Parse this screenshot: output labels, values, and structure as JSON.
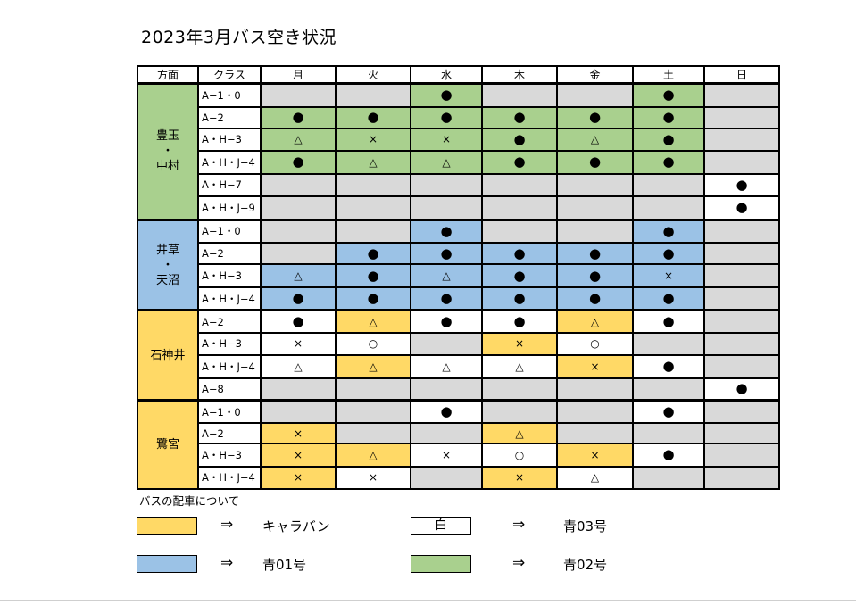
{
  "title": "2023年3月バス空き状況",
  "headers": [
    "方面",
    "クラス",
    "月",
    "火",
    "水",
    "木",
    "金",
    "土",
    "日"
  ],
  "colors": {
    "green": "#a9d08e",
    "blue": "#9bc2e6",
    "yellow": "#ffd966",
    "gray": "#d9d9d9",
    "white": "#ffffff"
  },
  "groups": [
    {
      "direction_lines": [
        "豊玉",
        "・",
        "中村"
      ],
      "color": "green",
      "rows": [
        {
          "cls": "A−1・0",
          "cells": [
            {
              "m": "",
              "c": "gray"
            },
            {
              "m": "",
              "c": "gray"
            },
            {
              "m": "●",
              "c": "green"
            },
            {
              "m": "",
              "c": "gray"
            },
            {
              "m": "",
              "c": "gray"
            },
            {
              "m": "●",
              "c": "green"
            },
            {
              "m": "",
              "c": "gray"
            }
          ]
        },
        {
          "cls": "A−2",
          "cells": [
            {
              "m": "●",
              "c": "green"
            },
            {
              "m": "●",
              "c": "green"
            },
            {
              "m": "●",
              "c": "green"
            },
            {
              "m": "●",
              "c": "green"
            },
            {
              "m": "●",
              "c": "green"
            },
            {
              "m": "●",
              "c": "green"
            },
            {
              "m": "",
              "c": "gray"
            }
          ]
        },
        {
          "cls": "A・H−3",
          "cells": [
            {
              "m": "△",
              "c": "green"
            },
            {
              "m": "×",
              "c": "green"
            },
            {
              "m": "×",
              "c": "green"
            },
            {
              "m": "●",
              "c": "green"
            },
            {
              "m": "△",
              "c": "green"
            },
            {
              "m": "●",
              "c": "green"
            },
            {
              "m": "",
              "c": "gray"
            }
          ]
        },
        {
          "cls": "A・H・J−4",
          "cells": [
            {
              "m": "●",
              "c": "green"
            },
            {
              "m": "△",
              "c": "green"
            },
            {
              "m": "△",
              "c": "green"
            },
            {
              "m": "●",
              "c": "green"
            },
            {
              "m": "●",
              "c": "green"
            },
            {
              "m": "●",
              "c": "green"
            },
            {
              "m": "",
              "c": "gray"
            }
          ]
        },
        {
          "cls": "A・H−7",
          "cells": [
            {
              "m": "",
              "c": "gray"
            },
            {
              "m": "",
              "c": "gray"
            },
            {
              "m": "",
              "c": "gray"
            },
            {
              "m": "",
              "c": "gray"
            },
            {
              "m": "",
              "c": "gray"
            },
            {
              "m": "",
              "c": "gray"
            },
            {
              "m": "●",
              "c": "white"
            }
          ]
        },
        {
          "cls": "A・H・J−9",
          "cells": [
            {
              "m": "",
              "c": "gray"
            },
            {
              "m": "",
              "c": "gray"
            },
            {
              "m": "",
              "c": "gray"
            },
            {
              "m": "",
              "c": "gray"
            },
            {
              "m": "",
              "c": "gray"
            },
            {
              "m": "",
              "c": "gray"
            },
            {
              "m": "●",
              "c": "white"
            }
          ]
        }
      ]
    },
    {
      "direction_lines": [
        "井草",
        "・",
        "天沼"
      ],
      "color": "blue",
      "rows": [
        {
          "cls": "A−1・0",
          "cells": [
            {
              "m": "",
              "c": "gray"
            },
            {
              "m": "",
              "c": "gray"
            },
            {
              "m": "●",
              "c": "blue"
            },
            {
              "m": "",
              "c": "gray"
            },
            {
              "m": "",
              "c": "gray"
            },
            {
              "m": "●",
              "c": "blue"
            },
            {
              "m": "",
              "c": "gray"
            }
          ]
        },
        {
          "cls": "A−2",
          "cells": [
            {
              "m": "",
              "c": "gray"
            },
            {
              "m": "●",
              "c": "blue"
            },
            {
              "m": "●",
              "c": "blue"
            },
            {
              "m": "●",
              "c": "blue"
            },
            {
              "m": "●",
              "c": "blue"
            },
            {
              "m": "●",
              "c": "blue"
            },
            {
              "m": "",
              "c": "gray"
            }
          ]
        },
        {
          "cls": "A・H−3",
          "cells": [
            {
              "m": "△",
              "c": "blue"
            },
            {
              "m": "●",
              "c": "blue"
            },
            {
              "m": "△",
              "c": "blue"
            },
            {
              "m": "●",
              "c": "blue"
            },
            {
              "m": "●",
              "c": "blue"
            },
            {
              "m": "×",
              "c": "blue"
            },
            {
              "m": "",
              "c": "gray"
            }
          ]
        },
        {
          "cls": "A・H・J−4",
          "cells": [
            {
              "m": "●",
              "c": "blue"
            },
            {
              "m": "●",
              "c": "blue"
            },
            {
              "m": "●",
              "c": "blue"
            },
            {
              "m": "●",
              "c": "blue"
            },
            {
              "m": "●",
              "c": "blue"
            },
            {
              "m": "●",
              "c": "blue"
            },
            {
              "m": "",
              "c": "gray"
            }
          ]
        }
      ]
    },
    {
      "direction_lines": [
        "石神井"
      ],
      "color": "yellow",
      "rows": [
        {
          "cls": "A−2",
          "cells": [
            {
              "m": "●",
              "c": "white"
            },
            {
              "m": "△",
              "c": "yellow"
            },
            {
              "m": "●",
              "c": "white"
            },
            {
              "m": "●",
              "c": "white"
            },
            {
              "m": "△",
              "c": "yellow"
            },
            {
              "m": "●",
              "c": "white"
            },
            {
              "m": "",
              "c": "gray"
            }
          ]
        },
        {
          "cls": "A・H−3",
          "cells": [
            {
              "m": "×",
              "c": "white"
            },
            {
              "m": "○",
              "c": "white"
            },
            {
              "m": "",
              "c": "gray"
            },
            {
              "m": "×",
              "c": "yellow"
            },
            {
              "m": "○",
              "c": "white"
            },
            {
              "m": "",
              "c": "gray"
            },
            {
              "m": "",
              "c": "gray"
            }
          ]
        },
        {
          "cls": "A・H・J−4",
          "cells": [
            {
              "m": "△",
              "c": "white"
            },
            {
              "m": "△",
              "c": "yellow"
            },
            {
              "m": "△",
              "c": "white"
            },
            {
              "m": "△",
              "c": "white"
            },
            {
              "m": "×",
              "c": "yellow"
            },
            {
              "m": "●",
              "c": "white"
            },
            {
              "m": "",
              "c": "gray"
            }
          ]
        },
        {
          "cls": "A−8",
          "cells": [
            {
              "m": "",
              "c": "gray"
            },
            {
              "m": "",
              "c": "gray"
            },
            {
              "m": "",
              "c": "gray"
            },
            {
              "m": "",
              "c": "gray"
            },
            {
              "m": "",
              "c": "gray"
            },
            {
              "m": "",
              "c": "gray"
            },
            {
              "m": "●",
              "c": "white"
            }
          ]
        }
      ]
    },
    {
      "direction_lines": [
        "鷺宮"
      ],
      "color": "yellow",
      "rows": [
        {
          "cls": "A−1・0",
          "cells": [
            {
              "m": "",
              "c": "gray"
            },
            {
              "m": "",
              "c": "gray"
            },
            {
              "m": "●",
              "c": "white"
            },
            {
              "m": "",
              "c": "gray"
            },
            {
              "m": "",
              "c": "gray"
            },
            {
              "m": "●",
              "c": "white"
            },
            {
              "m": "",
              "c": "gray"
            }
          ]
        },
        {
          "cls": "A−2",
          "cells": [
            {
              "m": "×",
              "c": "yellow"
            },
            {
              "m": "",
              "c": "gray"
            },
            {
              "m": "",
              "c": "gray"
            },
            {
              "m": "△",
              "c": "yellow"
            },
            {
              "m": "",
              "c": "gray"
            },
            {
              "m": "",
              "c": "gray"
            },
            {
              "m": "",
              "c": "gray"
            }
          ]
        },
        {
          "cls": "A・H−3",
          "cells": [
            {
              "m": "×",
              "c": "yellow"
            },
            {
              "m": "△",
              "c": "yellow"
            },
            {
              "m": "×",
              "c": "white"
            },
            {
              "m": "○",
              "c": "white"
            },
            {
              "m": "×",
              "c": "yellow"
            },
            {
              "m": "●",
              "c": "white"
            },
            {
              "m": "",
              "c": "gray"
            }
          ]
        },
        {
          "cls": "A・H・J−4",
          "cells": [
            {
              "m": "×",
              "c": "yellow"
            },
            {
              "m": "×",
              "c": "white"
            },
            {
              "m": "",
              "c": "gray"
            },
            {
              "m": "×",
              "c": "yellow"
            },
            {
              "m": "△",
              "c": "white"
            },
            {
              "m": "",
              "c": "gray"
            },
            {
              "m": "",
              "c": "gray"
            }
          ]
        }
      ]
    }
  ],
  "legend": {
    "title": "バスの配車について",
    "arrow": "⇒",
    "items": [
      {
        "swatch_color": "yellow",
        "swatch_text": "",
        "label": "キャラバン"
      },
      {
        "swatch_color": "white",
        "swatch_text": "白",
        "label": "青03号"
      },
      {
        "swatch_color": "blue",
        "swatch_text": "",
        "label": "青01号"
      },
      {
        "swatch_color": "green",
        "swatch_text": "",
        "label": "青02号"
      }
    ]
  }
}
